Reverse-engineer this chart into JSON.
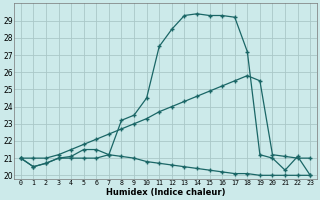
{
  "xlabel": "Humidex (Indice chaleur)",
  "background_color": "#cceaea",
  "grid_color": "#aac8c8",
  "line_color": "#1a6666",
  "xlim": [
    -0.5,
    23.5
  ],
  "ylim": [
    19.8,
    30.0
  ],
  "xtick_labels": [
    "0",
    "1",
    "2",
    "3",
    "4",
    "5",
    "6",
    "7",
    "8",
    "9",
    "10",
    "11",
    "12",
    "13",
    "14",
    "15",
    "16",
    "17",
    "18",
    "19",
    "20",
    "21",
    "22",
    "23"
  ],
  "ytick_labels": [
    "20",
    "21",
    "22",
    "23",
    "24",
    "25",
    "26",
    "27",
    "28",
    "29"
  ],
  "ytick_vals": [
    20,
    21,
    22,
    23,
    24,
    25,
    26,
    27,
    28,
    29
  ],
  "line1_x": [
    0,
    1,
    2,
    3,
    4,
    5,
    6,
    7,
    8,
    9,
    10,
    11,
    12,
    13,
    14,
    15,
    16,
    17,
    18,
    19,
    20,
    21,
    22,
    23
  ],
  "line1_y": [
    21.0,
    20.5,
    20.7,
    21.0,
    21.0,
    21.0,
    21.0,
    21.2,
    21.1,
    21.0,
    20.8,
    20.7,
    20.6,
    20.5,
    20.4,
    20.3,
    20.2,
    20.1,
    20.1,
    20.0,
    20.0,
    20.0,
    20.0,
    20.0
  ],
  "line2_x": [
    0,
    1,
    2,
    3,
    4,
    5,
    6,
    7,
    8,
    9,
    10,
    11,
    12,
    13,
    14,
    15,
    16,
    17,
    18,
    19,
    20,
    21,
    22,
    23
  ],
  "line2_y": [
    21.0,
    21.0,
    21.0,
    21.2,
    21.5,
    21.8,
    22.1,
    22.4,
    22.7,
    23.0,
    23.3,
    23.7,
    24.0,
    24.3,
    24.6,
    24.9,
    25.2,
    25.5,
    25.8,
    25.5,
    21.2,
    21.1,
    21.0,
    21.0
  ],
  "line3_x": [
    0,
    1,
    2,
    3,
    4,
    5,
    6,
    7,
    8,
    9,
    10,
    11,
    12,
    13,
    14,
    15,
    16,
    17,
    18,
    19,
    20,
    21,
    22,
    23
  ],
  "line3_y": [
    21.0,
    20.5,
    20.7,
    21.0,
    21.1,
    21.5,
    21.5,
    21.2,
    23.2,
    23.5,
    24.5,
    27.5,
    28.5,
    29.3,
    29.4,
    29.3,
    29.3,
    29.2,
    27.2,
    21.2,
    21.0,
    20.3,
    21.1,
    20.0
  ]
}
